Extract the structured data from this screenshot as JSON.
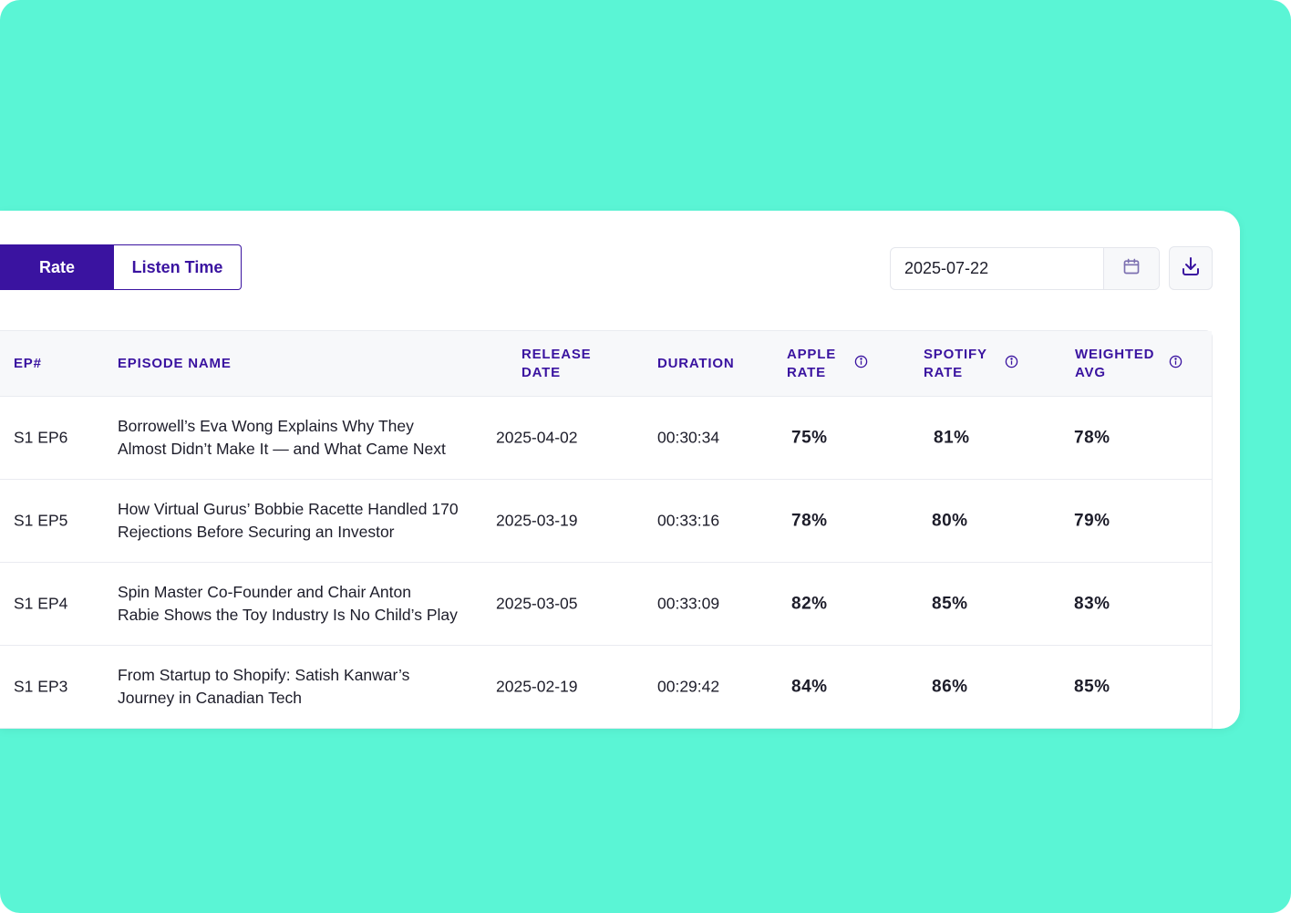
{
  "toggle": {
    "rate_label": "Rate",
    "listen_label": "Listen Time"
  },
  "date_picker": {
    "value": "2025-07-22",
    "calendar_icon": "calendar-icon"
  },
  "download": {
    "icon": "download-icon"
  },
  "table": {
    "headers": {
      "ep": "EP#",
      "name": "EPISODE NAME",
      "release_1": "RELEASE",
      "release_2": "DATE",
      "duration": "DURATION",
      "apple_1": "APPLE",
      "apple_2": "RATE",
      "spotify_1": "SPOTIFY",
      "spotify_2": "RATE",
      "weighted_1": "WEIGHTED",
      "weighted_2": "AVG"
    },
    "rows": [
      {
        "ep": "S1 EP6",
        "name_1": "Borrowell’s Eva Wong Explains Why They",
        "name_2": "Almost Didn’t Make It — and What Came Next",
        "release": "2025-04-02",
        "duration": "00:30:34",
        "apple": "75%",
        "spotify": "81%",
        "weighted": "78%"
      },
      {
        "ep": "S1 EP5",
        "name_1": "How Virtual Gurus’ Bobbie Racette Handled 170",
        "name_2": "Rejections Before Securing an Investor",
        "release": "2025-03-19",
        "duration": "00:33:16",
        "apple": "78%",
        "spotify": "80%",
        "weighted": "79%"
      },
      {
        "ep": "S1 EP4",
        "name_1": "Spin Master Co-Founder and Chair Anton",
        "name_2": "Rabie Shows the Toy Industry Is No Child’s Play",
        "release": "2025-03-05",
        "duration": "00:33:09",
        "apple": "82%",
        "spotify": "85%",
        "weighted": "83%"
      },
      {
        "ep": "S1 EP3",
        "name_1": "From Startup to Shopify: Satish Kanwar’s",
        "name_2": "Journey in Canadian Tech",
        "release": "2025-02-19",
        "duration": "00:29:42",
        "apple": "84%",
        "spotify": "86%",
        "weighted": "85%"
      }
    ]
  },
  "colors": {
    "background": "#5af5d5",
    "accent": "#3a13a0"
  }
}
